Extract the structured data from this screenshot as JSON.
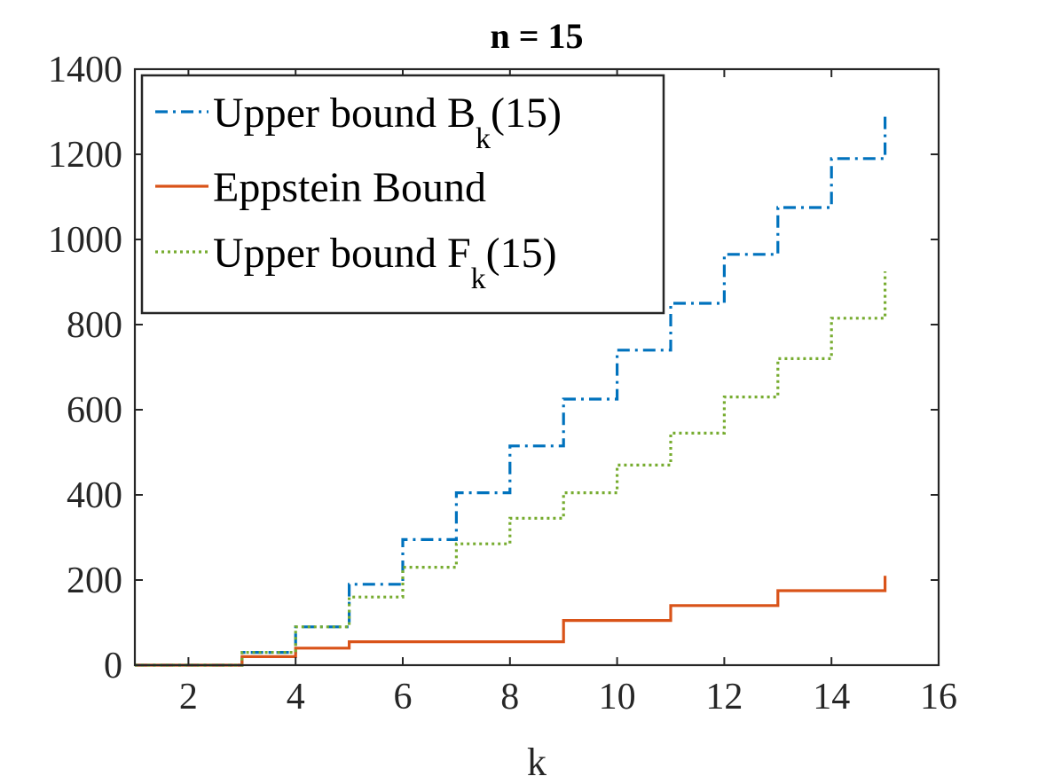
{
  "chart_data": {
    "type": "line",
    "title": "n = 15",
    "xlabel": "k",
    "ylabel": "",
    "xlim": [
      1,
      16
    ],
    "ylim": [
      0,
      1400
    ],
    "xticks": [
      2,
      4,
      6,
      8,
      10,
      12,
      14,
      16
    ],
    "yticks": [
      0,
      200,
      400,
      600,
      800,
      1000,
      1200,
      1400
    ],
    "step": "post",
    "legend_position": "top-left",
    "grid": false,
    "box": true,
    "x": [
      1,
      2,
      3,
      4,
      5,
      6,
      7,
      8,
      9,
      10,
      11,
      12,
      13,
      14,
      15
    ],
    "series": [
      {
        "name": "Upper bound B",
        "name_subscript": "k",
        "name_suffix": "(15)",
        "color": "#0072BD",
        "dash": "dashdot",
        "values": [
          0,
          0,
          30,
          90,
          190,
          295,
          405,
          515,
          625,
          740,
          850,
          965,
          1075,
          1190,
          1300
        ]
      },
      {
        "name": "Eppstein Bound",
        "color": "#D95319",
        "dash": "solid",
        "values": [
          0,
          0,
          20,
          40,
          55,
          55,
          55,
          55,
          105,
          105,
          140,
          140,
          175,
          175,
          210
        ]
      },
      {
        "name": "Upper bound F",
        "name_subscript": "k",
        "name_suffix": "(15)",
        "color": "#77AC30",
        "dash": "dotted",
        "values": [
          0,
          0,
          30,
          90,
          160,
          230,
          285,
          345,
          405,
          470,
          545,
          630,
          720,
          815,
          925
        ]
      }
    ]
  }
}
